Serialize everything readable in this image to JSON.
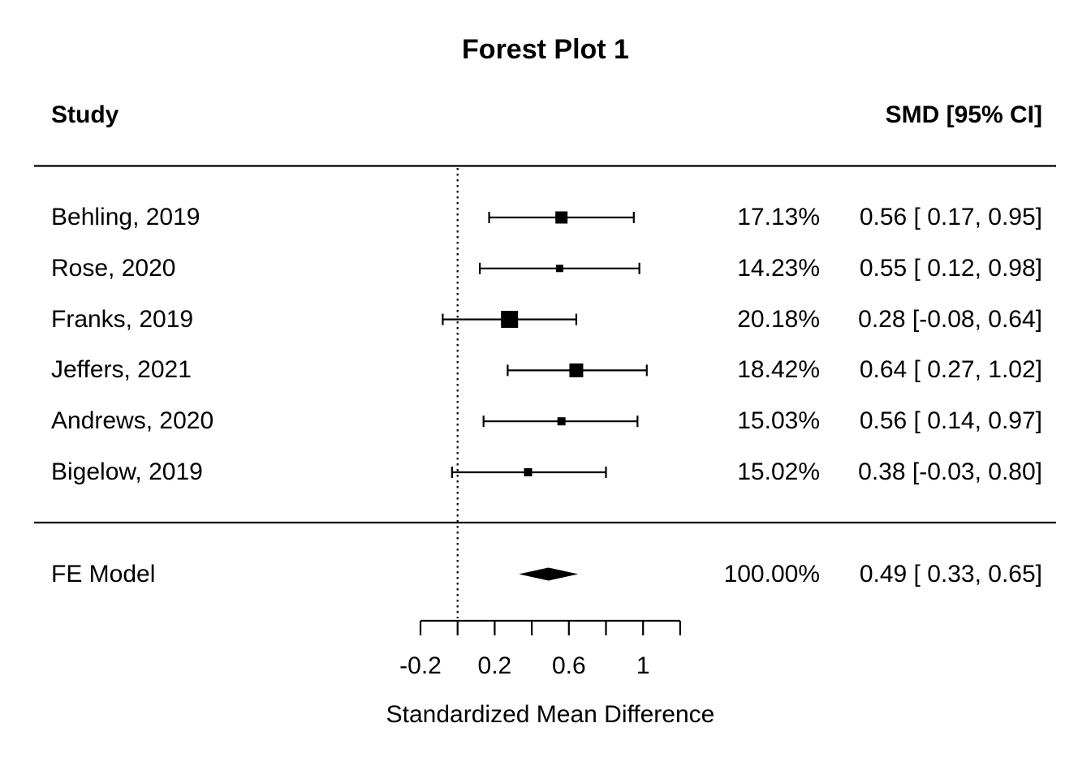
{
  "chart_data": {
    "type": "forest",
    "title": "Forest Plot 1",
    "xlabel": "Standardized Mean Difference",
    "columns": {
      "study_header": "Study",
      "estimate_header": "SMD [95% CI]"
    },
    "studies": [
      {
        "label": "Behling, 2019",
        "weight": "17.13%",
        "estimate": 0.56,
        "ci_lower": 0.17,
        "ci_upper": 0.95,
        "estimate_label": "0.56 [ 0.17, 0.95]",
        "marker_size": 15
      },
      {
        "label": "Rose, 2020",
        "weight": "14.23%",
        "estimate": 0.55,
        "ci_lower": 0.12,
        "ci_upper": 0.98,
        "estimate_label": "0.55 [ 0.12, 0.98]",
        "marker_size": 9
      },
      {
        "label": "Franks, 2019",
        "weight": "20.18%",
        "estimate": 0.28,
        "ci_lower": -0.08,
        "ci_upper": 0.64,
        "estimate_label": "0.28 [-0.08, 0.64]",
        "marker_size": 21
      },
      {
        "label": "Jeffers, 2021",
        "weight": "18.42%",
        "estimate": 0.64,
        "ci_lower": 0.27,
        "ci_upper": 1.02,
        "estimate_label": "0.64 [ 0.27, 1.02]",
        "marker_size": 17
      },
      {
        "label": "Andrews, 2020",
        "weight": "15.03%",
        "estimate": 0.56,
        "ci_lower": 0.14,
        "ci_upper": 0.97,
        "estimate_label": "0.56 [ 0.14, 0.97]",
        "marker_size": 10
      },
      {
        "label": "Bigelow, 2019",
        "weight": "15.02%",
        "estimate": 0.38,
        "ci_lower": -0.03,
        "ci_upper": 0.8,
        "estimate_label": "0.38 [-0.03, 0.80]",
        "marker_size": 10
      }
    ],
    "summary": {
      "label": "FE Model",
      "weight": "100.00%",
      "estimate": 0.49,
      "ci_lower": 0.33,
      "ci_upper": 0.65,
      "estimate_label": "0.49 [ 0.33, 0.65]"
    },
    "axis": {
      "range": [
        -0.2,
        1.2
      ],
      "ticks": [
        -0.2,
        0,
        0.2,
        0.4,
        0.6,
        0.8,
        1,
        1.2
      ],
      "labeled_ticks": [
        {
          "value": -0.2,
          "label": "-0.2"
        },
        {
          "value": 0.2,
          "label": "0.2"
        },
        {
          "value": 0.6,
          "label": "0.6"
        },
        {
          "value": 1,
          "label": "1"
        }
      ],
      "reference_line": 0
    },
    "colors": {
      "ink": "#000000",
      "background": "#ffffff"
    }
  }
}
